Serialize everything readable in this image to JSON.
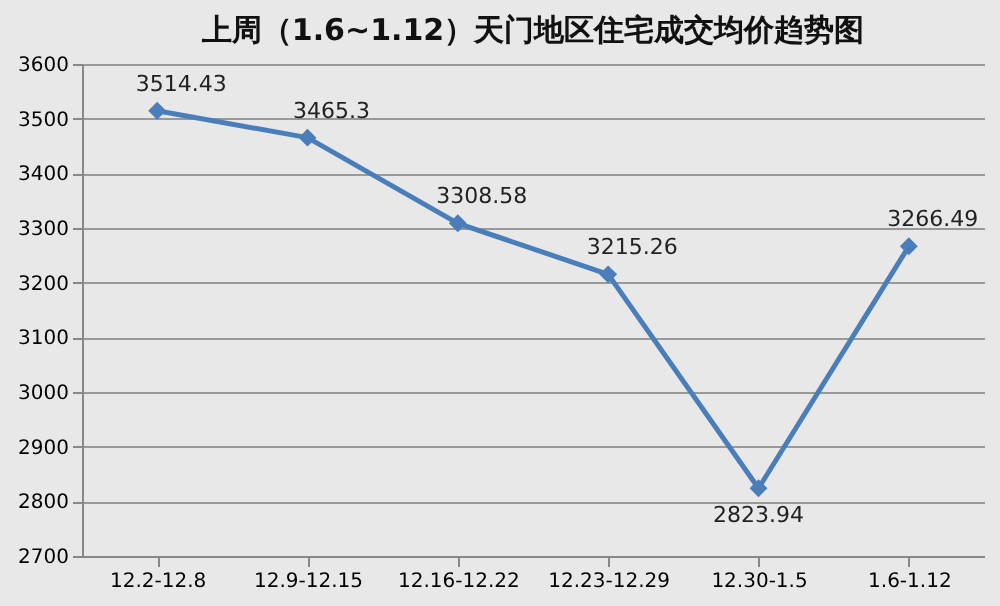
{
  "chart_data": {
    "type": "line",
    "title": "上周（1.6~1.12）天门地区住宅成交均价趋势图",
    "categories": [
      "12.2-12.8",
      "12.9-12.15",
      "12.16-12.22",
      "12.23-12.29",
      "12.30-1.5",
      "1.6-1.12"
    ],
    "series": [
      {
        "color": "#4a7ebb",
        "values": [
          3514.43,
          3465.3,
          3308.58,
          3215.26,
          2823.94,
          3266.49
        ]
      }
    ],
    "ylim": [
      2700,
      3600
    ],
    "yticks": [
      2700,
      2800,
      2900,
      3000,
      3100,
      3200,
      3300,
      3400,
      3500,
      3600
    ],
    "grid": "y",
    "marker": "diamond",
    "line_style": "solid",
    "data_labels": true
  }
}
